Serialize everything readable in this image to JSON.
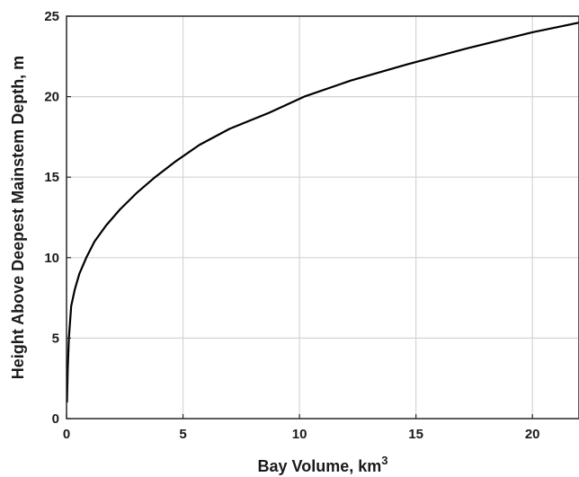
{
  "chart_data": {
    "type": "line",
    "title": "",
    "xlabel_text": "Bay Volume, km",
    "xlabel_sup": "3",
    "ylabel": "Height Above Deepest Mainstem Depth, m",
    "xlim": [
      0,
      22
    ],
    "ylim": [
      0,
      25
    ],
    "grid": true,
    "x_ticks": [
      0,
      5,
      10,
      15,
      20
    ],
    "y_ticks": [
      0,
      5,
      10,
      15,
      20,
      25
    ],
    "series": [
      {
        "x": [
          0.02,
          0.05,
          0.1,
          0.2,
          0.35,
          0.55,
          0.85,
          1.2,
          1.7,
          2.3,
          3.0,
          3.8,
          4.7,
          5.7,
          7.0,
          8.7,
          10.2,
          12.2,
          14.6,
          17.2,
          20.0,
          22.0
        ],
        "y": [
          1,
          3,
          5,
          7,
          8,
          9,
          10,
          11,
          12,
          13,
          14,
          15,
          16,
          17,
          18,
          19,
          20,
          21,
          22,
          23,
          24,
          24.6
        ]
      }
    ],
    "colors": {
      "line": "#000000",
      "grid": "#d4d4d4",
      "frame": "#262626"
    }
  }
}
